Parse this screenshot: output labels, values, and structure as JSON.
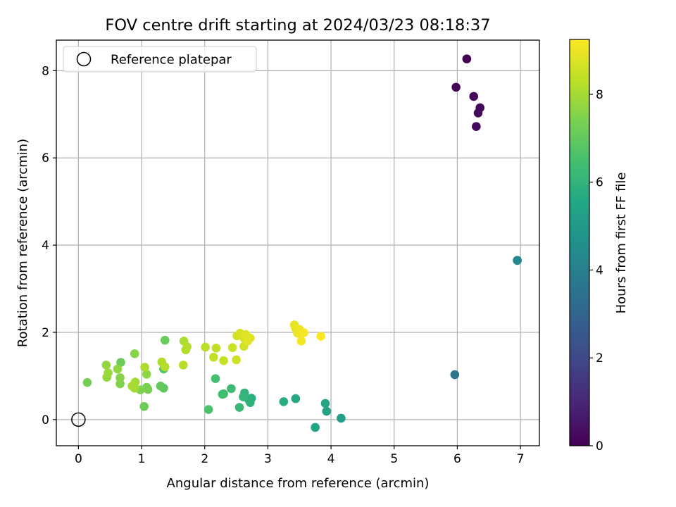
{
  "chart_data": {
    "type": "scatter",
    "title": "FOV centre drift starting at 2024/03/23 08:18:37",
    "xlabel": "Angular distance from reference (arcmin)",
    "ylabel": "Rotation from reference (arcmin)",
    "xlim": [
      -0.35,
      7.3
    ],
    "ylim": [
      -0.6,
      8.7
    ],
    "xticks": [
      "0",
      "1",
      "2",
      "3",
      "4",
      "5",
      "6",
      "7"
    ],
    "yticks": [
      "0",
      "2",
      "4",
      "6",
      "8"
    ],
    "grid": true,
    "legend": {
      "position": "top-left",
      "entries": [
        {
          "label": "Reference platepar",
          "marker": "open-circle"
        }
      ]
    },
    "reference_point": {
      "x": 0,
      "y": 0
    },
    "colorbar": {
      "label": "Hours from first FF file",
      "range": [
        0,
        9.25
      ],
      "ticks": [
        "0",
        "2",
        "4",
        "6",
        "8"
      ],
      "colormap": "viridis"
    },
    "points": [
      {
        "x": 6.15,
        "y": 8.27,
        "c": 0.0
      },
      {
        "x": 5.98,
        "y": 7.62,
        "c": 0.05
      },
      {
        "x": 6.26,
        "y": 7.41,
        "c": 0.1
      },
      {
        "x": 6.36,
        "y": 7.15,
        "c": 0.15
      },
      {
        "x": 6.33,
        "y": 7.03,
        "c": 0.2
      },
      {
        "x": 6.3,
        "y": 6.72,
        "c": 0.25
      },
      {
        "x": 5.96,
        "y": 1.03,
        "c": 3.6
      },
      {
        "x": 6.95,
        "y": 3.65,
        "c": 4.0
      },
      {
        "x": 6.95,
        "y": 3.65,
        "c": 4.3
      },
      {
        "x": 4.16,
        "y": 0.03,
        "c": 5.2
      },
      {
        "x": 3.93,
        "y": 0.19,
        "c": 5.3
      },
      {
        "x": 3.91,
        "y": 0.37,
        "c": 5.4
      },
      {
        "x": 3.75,
        "y": -0.18,
        "c": 5.5
      },
      {
        "x": 3.44,
        "y": 0.48,
        "c": 5.6
      },
      {
        "x": 3.25,
        "y": 0.41,
        "c": 5.7
      },
      {
        "x": 2.74,
        "y": 0.49,
        "c": 5.8
      },
      {
        "x": 2.72,
        "y": 0.39,
        "c": 5.9
      },
      {
        "x": 2.7,
        "y": 0.45,
        "c": 5.95
      },
      {
        "x": 2.63,
        "y": 0.61,
        "c": 6.0
      },
      {
        "x": 2.61,
        "y": 0.52,
        "c": 6.1
      },
      {
        "x": 2.55,
        "y": 0.28,
        "c": 6.2
      },
      {
        "x": 2.42,
        "y": 0.71,
        "c": 6.3
      },
      {
        "x": 2.3,
        "y": 0.59,
        "c": 6.35
      },
      {
        "x": 2.28,
        "y": 0.58,
        "c": 6.4
      },
      {
        "x": 2.17,
        "y": 0.94,
        "c": 6.5
      },
      {
        "x": 2.06,
        "y": 0.23,
        "c": 6.6
      },
      {
        "x": 1.35,
        "y": 1.16,
        "c": 6.7
      },
      {
        "x": 1.35,
        "y": 0.72,
        "c": 6.9
      },
      {
        "x": 1.3,
        "y": 0.77,
        "c": 7.0
      },
      {
        "x": 1.37,
        "y": 1.82,
        "c": 7.1
      },
      {
        "x": 0.67,
        "y": 1.31,
        "c": 7.15
      },
      {
        "x": 1.04,
        "y": 0.3,
        "c": 7.2
      },
      {
        "x": 0.14,
        "y": 0.85,
        "c": 7.3
      },
      {
        "x": 1.1,
        "y": 0.69,
        "c": 7.35
      },
      {
        "x": 1.08,
        "y": 0.74,
        "c": 7.4
      },
      {
        "x": 0.98,
        "y": 0.68,
        "c": 7.45
      },
      {
        "x": 0.66,
        "y": 0.82,
        "c": 7.5
      },
      {
        "x": 0.66,
        "y": 0.96,
        "c": 7.55
      },
      {
        "x": 0.89,
        "y": 1.51,
        "c": 7.6
      },
      {
        "x": 1.08,
        "y": 1.04,
        "c": 7.65
      },
      {
        "x": 0.62,
        "y": 1.16,
        "c": 7.7
      },
      {
        "x": 0.44,
        "y": 1.25,
        "c": 7.75
      },
      {
        "x": 0.45,
        "y": 0.97,
        "c": 7.8
      },
      {
        "x": 0.47,
        "y": 1.07,
        "c": 7.85
      },
      {
        "x": 0.86,
        "y": 0.76,
        "c": 7.9
      },
      {
        "x": 0.89,
        "y": 0.72,
        "c": 7.95
      },
      {
        "x": 0.9,
        "y": 0.86,
        "c": 8.0
      },
      {
        "x": 0.85,
        "y": 0.77,
        "c": 8.05
      },
      {
        "x": 1.05,
        "y": 1.2,
        "c": 8.1
      },
      {
        "x": 1.32,
        "y": 1.32,
        "c": 8.15
      },
      {
        "x": 1.37,
        "y": 1.21,
        "c": 8.2
      },
      {
        "x": 1.67,
        "y": 1.8,
        "c": 8.1
      },
      {
        "x": 1.7,
        "y": 1.6,
        "c": 8.15
      },
      {
        "x": 1.72,
        "y": 1.67,
        "c": 8.2
      },
      {
        "x": 1.66,
        "y": 1.25,
        "c": 8.25
      },
      {
        "x": 2.01,
        "y": 1.66,
        "c": 8.3
      },
      {
        "x": 2.18,
        "y": 1.64,
        "c": 8.35
      },
      {
        "x": 2.14,
        "y": 1.43,
        "c": 8.4
      },
      {
        "x": 2.3,
        "y": 1.35,
        "c": 8.45
      },
      {
        "x": 2.44,
        "y": 1.65,
        "c": 8.5
      },
      {
        "x": 2.5,
        "y": 1.37,
        "c": 8.55
      },
      {
        "x": 2.62,
        "y": 1.68,
        "c": 8.6
      },
      {
        "x": 2.51,
        "y": 1.92,
        "c": 8.65
      },
      {
        "x": 2.56,
        "y": 1.98,
        "c": 8.7
      },
      {
        "x": 2.62,
        "y": 1.87,
        "c": 8.75
      },
      {
        "x": 2.65,
        "y": 1.95,
        "c": 8.8
      },
      {
        "x": 2.72,
        "y": 1.87,
        "c": 8.8
      },
      {
        "x": 2.68,
        "y": 1.8,
        "c": 8.85
      },
      {
        "x": 3.42,
        "y": 2.17,
        "c": 8.9
      },
      {
        "x": 3.44,
        "y": 2.09,
        "c": 8.95
      },
      {
        "x": 3.47,
        "y": 1.98,
        "c": 9.0
      },
      {
        "x": 3.5,
        "y": 2.07,
        "c": 9.05
      },
      {
        "x": 3.53,
        "y": 1.8,
        "c": 9.1
      },
      {
        "x": 3.57,
        "y": 1.99,
        "c": 9.15
      },
      {
        "x": 3.84,
        "y": 1.91,
        "c": 9.2
      }
    ]
  }
}
